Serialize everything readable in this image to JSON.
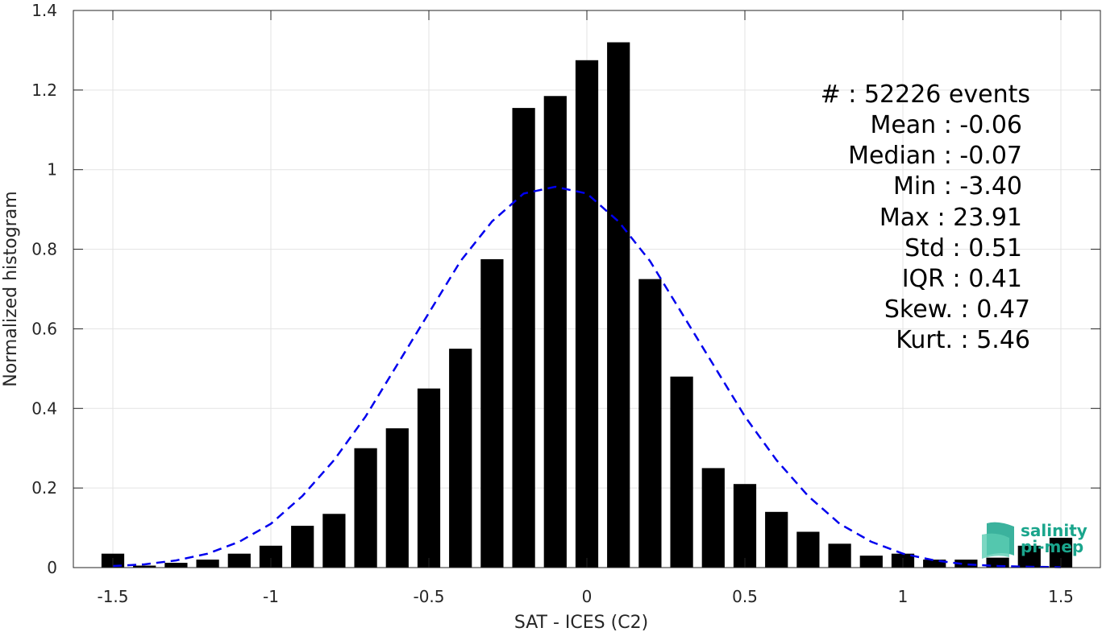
{
  "chart_data": {
    "type": "bar",
    "title": "",
    "xlabel": "SAT - ICES (C2)",
    "ylabel": "Normalized histogram",
    "xlim": [
      -1.625,
      1.625
    ],
    "ylim": [
      0,
      1.4
    ],
    "xticks": [
      -1.5,
      -1,
      -0.5,
      0,
      0.5,
      1,
      1.5
    ],
    "xtick_labels": [
      "-1.5",
      "-1",
      "-0.5",
      "0",
      "0.5",
      "1",
      "1.5"
    ],
    "yticks": [
      0,
      0.2,
      0.4,
      0.6,
      0.8,
      1,
      1.2,
      1.4
    ],
    "ytick_labels": [
      "0",
      "0.2",
      "0.4",
      "0.6",
      "0.8",
      "1",
      "1.2",
      "1.4"
    ],
    "grid": true,
    "bar_color": "#000000",
    "fit_color": "#0000ee",
    "series": [
      {
        "type": "bar",
        "x": [
          -1.5,
          -1.4,
          -1.3,
          -1.2,
          -1.1,
          -1.0,
          -0.9,
          -0.8,
          -0.7,
          -0.6,
          -0.5,
          -0.4,
          -0.3,
          -0.2,
          -0.1,
          0.0,
          0.1,
          0.2,
          0.3,
          0.4,
          0.5,
          0.6,
          0.7,
          0.8,
          0.9,
          1.0,
          1.1,
          1.2,
          1.3,
          1.4,
          1.5
        ],
        "values": [
          0.035,
          0.005,
          0.012,
          0.02,
          0.035,
          0.055,
          0.105,
          0.135,
          0.3,
          0.35,
          0.45,
          0.55,
          0.775,
          1.155,
          1.185,
          1.275,
          1.32,
          0.725,
          0.48,
          0.25,
          0.21,
          0.14,
          0.09,
          0.06,
          0.03,
          0.035,
          0.02,
          0.02,
          0.025,
          0.055,
          0.075
        ]
      },
      {
        "type": "line",
        "style": "dashed",
        "x": [
          -1.5,
          -1.4,
          -1.3,
          -1.2,
          -1.1,
          -1.0,
          -0.9,
          -0.8,
          -0.7,
          -0.6,
          -0.5,
          -0.4,
          -0.3,
          -0.2,
          -0.1,
          0.0,
          0.1,
          0.2,
          0.3,
          0.4,
          0.5,
          0.6,
          0.7,
          0.8,
          0.9,
          1.0,
          1.1,
          1.2,
          1.3,
          1.4,
          1.5
        ],
        "values": [
          0.004,
          0.008,
          0.018,
          0.035,
          0.065,
          0.11,
          0.18,
          0.27,
          0.38,
          0.51,
          0.64,
          0.77,
          0.87,
          0.94,
          0.957,
          0.94,
          0.87,
          0.77,
          0.64,
          0.51,
          0.38,
          0.27,
          0.18,
          0.11,
          0.065,
          0.035,
          0.018,
          0.008,
          0.004,
          0.002,
          0.001
        ]
      }
    ],
    "annotations": [
      "#  : 52226 events",
      "Mean : -0.06",
      "Median : -0.07",
      "Min : -3.40",
      "Max : 23.91",
      "Std : 0.51",
      "IQR : 0.41",
      "Skew. : 0.47",
      "Kurt. : 5.46"
    ]
  },
  "logo": {
    "line1": "salinity",
    "line2": "pi-mep",
    "color": "#1aa58c"
  }
}
